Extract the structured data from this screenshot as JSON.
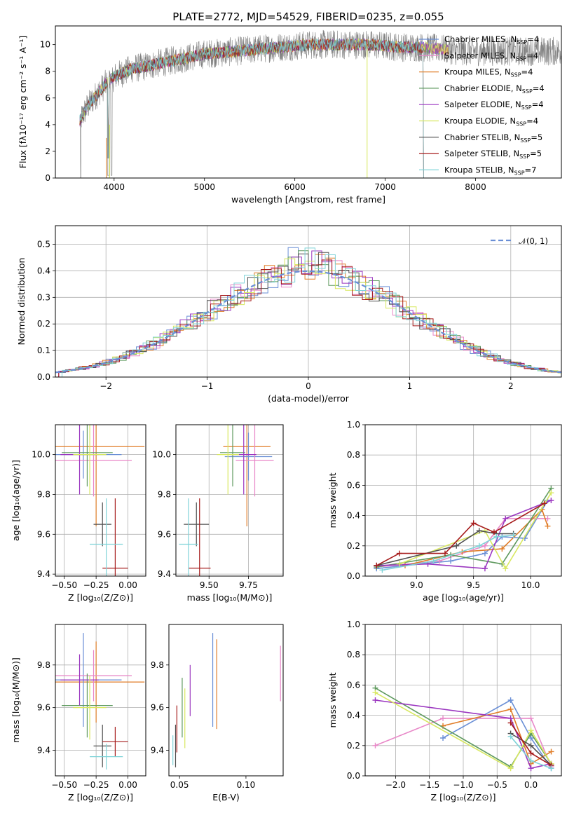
{
  "title": "PLATE=2772, MJD=54529, FIBERID=0235, z=0.055",
  "colors": {
    "data": "#808080",
    "ChabrierMILES": "#6a8fd6",
    "SalpeterMILES": "#e888c8",
    "KroupaMILES": "#e07d28",
    "ChabrierELODIE": "#5f9a5f",
    "SalpeterELODIE": "#9b37c0",
    "KroupaELODIE": "#d8e860",
    "ChabrierSTELIB": "#505050",
    "SalpeterSTELIB": "#a61b1b",
    "KroupaSTELIB": "#7fd3d8"
  },
  "chart_data": [
    {
      "id": "spectrum",
      "type": "line",
      "xlabel": "wavelength [Angstrom, rest frame]",
      "ylabel": "Flux [fλ10⁻¹⁷ erg cm⁻² s⁻¹ A⁻¹]",
      "xlim": [
        3350,
        8950
      ],
      "ylim": [
        0,
        11.4
      ],
      "xticks": [
        "4000",
        "5000",
        "6000",
        "7000",
        "8000"
      ],
      "yticks": [
        "0",
        "2",
        "4",
        "6",
        "8",
        "10"
      ],
      "legend_position": "top-right",
      "legend": [
        {
          "key": "ChabrierMILES",
          "label": "Chabrier MILES, N",
          "sub": "SSP",
          "val": "=4"
        },
        {
          "key": "SalpeterMILES",
          "label": "Salpeter MILES, N",
          "sub": "SSP",
          "val": "=4"
        },
        {
          "key": "KroupaMILES",
          "label": "Kroupa MILES, N",
          "sub": "SSP",
          "val": "=4"
        },
        {
          "key": "ChabrierELODIE",
          "label": "Chabrier ELODIE, N",
          "sub": "SSP",
          "val": "=4"
        },
        {
          "key": "SalpeterELODIE",
          "label": "Salpeter ELODIE, N",
          "sub": "SSP",
          "val": "=4"
        },
        {
          "key": "KroupaELODIE",
          "label": "Kroupa ELODIE, N",
          "sub": "SSP",
          "val": "=4"
        },
        {
          "key": "ChabrierSTELIB",
          "label": "Chabrier STELIB, N",
          "sub": "SSP",
          "val": "=5"
        },
        {
          "key": "SalpeterSTELIB",
          "label": "Salpeter STELIB, N",
          "sub": "SSP",
          "val": "=5"
        },
        {
          "key": "KroupaSTELIB",
          "label": "Kroupa STELIB, N",
          "sub": "SSP",
          "val": "=7"
        }
      ],
      "spectrum_envelope": {
        "x": [
          3620,
          3700,
          3800,
          3900,
          4000,
          4100,
          4200,
          4300,
          4500,
          4800,
          5000,
          5200,
          5500,
          5800,
          6000,
          6200,
          6500,
          6800,
          7000,
          7200,
          7400,
          7600,
          7800
        ],
        "y": [
          4.3,
          5.3,
          6.2,
          7.0,
          7.6,
          7.9,
          8.2,
          8.3,
          8.6,
          9.0,
          9.3,
          9.4,
          9.6,
          9.8,
          9.9,
          10.0,
          10.0,
          10.0,
          9.9,
          9.8,
          9.8,
          9.7,
          9.5
        ]
      }
    },
    {
      "id": "residuals",
      "type": "histogram",
      "xlabel": "(data-model)/error",
      "ylabel": "Normed distribution",
      "xlim": [
        -2.5,
        2.5
      ],
      "ylim": [
        0,
        0.57
      ],
      "xticks": [
        "−2",
        "−1",
        "0",
        "1",
        "2"
      ],
      "yticks": [
        "0.0",
        "0.1",
        "0.2",
        "0.3",
        "0.4",
        "0.5"
      ],
      "grid": true,
      "legend_position": "top-right",
      "legend": "𝒩(0, 1)",
      "gaussian": {
        "mu": 0,
        "sigma": 1
      }
    },
    {
      "id": "age-vs-Z",
      "type": "errorbar",
      "xlabel": "Z [log₁₀(Z/Z⊙)]",
      "ylabel": "age  [log₁₀(age/yr)]",
      "xlim": [
        -0.57,
        0.14
      ],
      "ylim": [
        9.39,
        10.15
      ],
      "xticks": [
        "−0.50",
        "−0.25",
        "0.00"
      ],
      "yticks": [
        "9.4",
        "9.6",
        "9.8",
        "10.0"
      ],
      "grid": true
    },
    {
      "id": "age-vs-mass",
      "type": "errorbar",
      "xlabel": "mass [log₁₀(M/M⊙)]",
      "xlim": [
        9.29,
        9.97
      ],
      "ylim": [
        9.39,
        10.15
      ],
      "xticks": [
        "9.50",
        "9.75"
      ],
      "yticks": [
        "9.4",
        "9.6",
        "9.8",
        "10.0"
      ],
      "grid": true
    },
    {
      "id": "weight-vs-age",
      "type": "line",
      "xlabel": "age  [log₁₀(age/yr)]",
      "ylabel": "mass weight",
      "xlim": [
        8.55,
        10.27
      ],
      "ylim": [
        0,
        1
      ],
      "xticks": [
        "9.0",
        "9.5",
        "10.0"
      ],
      "yticks": [
        "0.0",
        "0.2",
        "0.4",
        "0.6",
        "0.8",
        "1.0"
      ],
      "grid": true,
      "series": [
        {
          "key": "ChabrierMILES",
          "x": [
            8.65,
            9.3,
            9.6,
            9.75,
            9.95,
            10.15
          ],
          "y": [
            0.05,
            0.1,
            0.15,
            0.26,
            0.25,
            0.5
          ]
        },
        {
          "key": "SalpeterMILES",
          "x": [
            8.65,
            9.2,
            9.6,
            9.78,
            10.15
          ],
          "y": [
            0.06,
            0.1,
            0.2,
            0.38,
            0.38
          ]
        },
        {
          "key": "KroupaMILES",
          "x": [
            8.9,
            9.4,
            9.75,
            10.1,
            10.15
          ],
          "y": [
            0.07,
            0.16,
            0.18,
            0.44,
            0.33
          ]
        },
        {
          "key": "ChabrierELODIE",
          "x": [
            8.65,
            9.3,
            9.75,
            10.18
          ],
          "y": [
            0.06,
            0.14,
            0.08,
            0.58
          ]
        },
        {
          "key": "SalpeterELODIE",
          "x": [
            8.65,
            9.1,
            9.6,
            9.78,
            10.18
          ],
          "y": [
            0.07,
            0.08,
            0.05,
            0.38,
            0.5
          ]
        },
        {
          "key": "KroupaELODIE",
          "x": [
            8.85,
            9.6,
            9.78,
            10.18
          ],
          "y": [
            0.08,
            0.3,
            0.05,
            0.55
          ]
        },
        {
          "key": "ChabrierSTELIB",
          "x": [
            8.65,
            9.35,
            9.55,
            9.7,
            9.85
          ],
          "y": [
            0.07,
            0.2,
            0.3,
            0.28,
            0.28
          ]
        },
        {
          "key": "SalpeterSTELIB",
          "x": [
            8.65,
            8.85,
            9.25,
            9.5,
            9.68,
            10.12
          ],
          "y": [
            0.07,
            0.15,
            0.15,
            0.35,
            0.29,
            0.48
          ]
        },
        {
          "key": "KroupaSTELIB",
          "x": [
            8.7,
            9.15,
            9.55,
            9.7,
            9.85
          ],
          "y": [
            0.04,
            0.1,
            0.2,
            0.26,
            0.27
          ]
        }
      ]
    },
    {
      "id": "mass-vs-Z",
      "type": "errorbar",
      "xlabel": "Z [log₁₀(Z/Z⊙)]",
      "ylabel": "mass [log₁₀(M/M⊙)]",
      "xlim": [
        -0.57,
        0.14
      ],
      "ylim": [
        9.28,
        9.99
      ],
      "xticks": [
        "−0.50",
        "−0.25",
        "0.00"
      ],
      "yticks": [
        "9.4",
        "9.6",
        "9.8"
      ],
      "grid": true
    },
    {
      "id": "mass-vs-ebv",
      "type": "errorbar",
      "xlabel": "E(B-V)",
      "xlim": [
        0.042,
        0.128
      ],
      "ylim": [
        9.28,
        9.99
      ],
      "xticks": [
        "0.05",
        "0.10"
      ],
      "yticks": [
        "9.4",
        "9.6",
        "9.8"
      ],
      "grid": false
    },
    {
      "id": "weight-vs-Z",
      "type": "line",
      "xlabel": "Z [log₁₀(Z/Z⊙)]",
      "ylabel": "mass weight",
      "xlim": [
        -2.45,
        0.45
      ],
      "ylim": [
        0,
        1
      ],
      "xticks": [
        "−2.0",
        "−1.5",
        "−1.0",
        "−0.5",
        "0.0"
      ],
      "yticks": [
        "0.0",
        "0.2",
        "0.4",
        "0.6",
        "0.8",
        "1.0"
      ],
      "grid": true,
      "series": [
        {
          "key": "ChabrierMILES",
          "x": [
            -1.3,
            -0.3,
            0.0,
            0.3
          ],
          "y": [
            0.25,
            0.5,
            0.25,
            0.05
          ]
        },
        {
          "key": "SalpeterMILES",
          "x": [
            -2.3,
            -1.3,
            0.0,
            0.3
          ],
          "y": [
            0.2,
            0.38,
            0.38,
            0.06
          ]
        },
        {
          "key": "KroupaMILES",
          "x": [
            -1.3,
            -0.3,
            0.0,
            0.3
          ],
          "y": [
            0.33,
            0.44,
            0.08,
            0.16
          ]
        },
        {
          "key": "ChabrierELODIE",
          "x": [
            -2.3,
            -0.3,
            0.0,
            0.3
          ],
          "y": [
            0.58,
            0.06,
            0.28,
            0.08
          ]
        },
        {
          "key": "SalpeterELODIE",
          "x": [
            -2.3,
            -0.3,
            0.0,
            0.3
          ],
          "y": [
            0.5,
            0.38,
            0.05,
            0.08
          ]
        },
        {
          "key": "KroupaELODIE",
          "x": [
            -2.3,
            -0.3,
            0.0,
            0.3
          ],
          "y": [
            0.55,
            0.05,
            0.3,
            0.08
          ]
        },
        {
          "key": "ChabrierSTELIB",
          "x": [
            -0.3,
            0.0,
            0.3
          ],
          "y": [
            0.28,
            0.2,
            0.07
          ]
        },
        {
          "key": "SalpeterSTELIB",
          "x": [
            -0.3,
            0.0,
            0.3
          ],
          "y": [
            0.35,
            0.15,
            0.07
          ]
        },
        {
          "key": "KroupaSTELIB",
          "x": [
            -0.3,
            0.0,
            0.3
          ],
          "y": [
            0.26,
            0.1,
            0.05
          ]
        }
      ]
    }
  ]
}
